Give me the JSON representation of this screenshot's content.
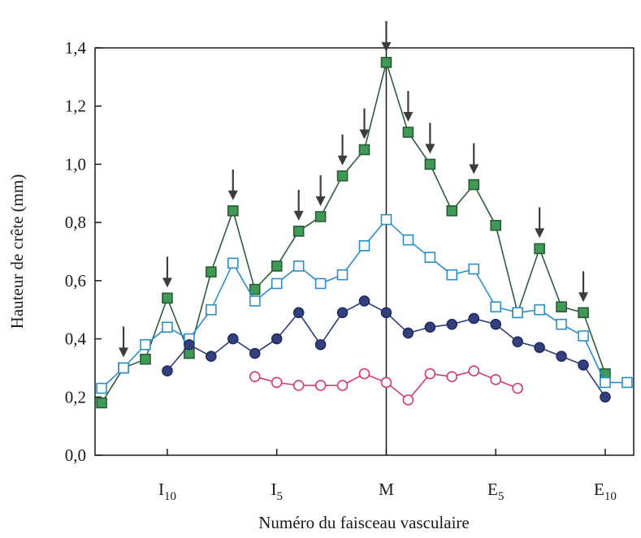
{
  "chart_data": {
    "type": "line",
    "xlabel": "Numéro du faisceau vasculaire",
    "ylabel": "Hauteur de crête (mm)",
    "ylim": [
      0,
      1.4
    ],
    "yticks": [
      {
        "value": 0.0,
        "label": "0,0"
      },
      {
        "value": 0.2,
        "label": "0,2"
      },
      {
        "value": 0.4,
        "label": "0,4"
      },
      {
        "value": 0.6,
        "label": "0,6"
      },
      {
        "value": 0.8,
        "label": "0,8"
      },
      {
        "value": 1.0,
        "label": "1,0"
      },
      {
        "value": 1.2,
        "label": "1,2"
      },
      {
        "value": 1.4,
        "label": "1,4"
      }
    ],
    "xlim": [
      -13.3,
      11.3
    ],
    "xticks": [
      {
        "value": -10,
        "main": "I",
        "sub": "10"
      },
      {
        "value": -5,
        "main": "I",
        "sub": "5"
      },
      {
        "value": 0,
        "main": "M",
        "sub": ""
      },
      {
        "value": 5,
        "main": "E",
        "sub": "5"
      },
      {
        "value": 10,
        "main": "E",
        "sub": "10"
      }
    ],
    "midline_x": 0,
    "series": [
      {
        "marker": "square-filled",
        "line_color": "#2f5a3c",
        "marker_fill": "#3f9a56",
        "marker_stroke": "#2a5a36",
        "points": [
          [
            -13,
            0.18
          ],
          [
            -12,
            0.3
          ],
          [
            -11,
            0.33
          ],
          [
            -10,
            0.54
          ],
          [
            -9,
            0.35
          ],
          [
            -8,
            0.63
          ],
          [
            -7,
            0.84
          ],
          [
            -6,
            0.57
          ],
          [
            -5,
            0.65
          ],
          [
            -4,
            0.77
          ],
          [
            -3,
            0.82
          ],
          [
            -2,
            0.96
          ],
          [
            -1,
            1.05
          ],
          [
            0,
            1.35
          ],
          [
            1,
            1.11
          ],
          [
            2,
            1.0
          ],
          [
            3,
            0.84
          ],
          [
            4,
            0.93
          ],
          [
            5,
            0.79
          ],
          [
            6,
            0.49
          ],
          [
            7,
            0.71
          ],
          [
            8,
            0.51
          ],
          [
            9,
            0.49
          ],
          [
            10,
            0.28
          ]
        ]
      },
      {
        "marker": "square-open",
        "line_color": "#2a8fc8",
        "marker_fill": "#ffffff",
        "marker_stroke": "#2a8fc8",
        "points": [
          [
            -13,
            0.23
          ],
          [
            -12,
            0.3
          ],
          [
            -11,
            0.38
          ],
          [
            -10,
            0.44
          ],
          [
            -9,
            0.4
          ],
          [
            -8,
            0.5
          ],
          [
            -7,
            0.66
          ],
          [
            -6,
            0.53
          ],
          [
            -5,
            0.59
          ],
          [
            -4,
            0.65
          ],
          [
            -3,
            0.59
          ],
          [
            -2,
            0.62
          ],
          [
            -1,
            0.72
          ],
          [
            0,
            0.81
          ],
          [
            1,
            0.74
          ],
          [
            2,
            0.68
          ],
          [
            3,
            0.62
          ],
          [
            4,
            0.64
          ],
          [
            5,
            0.51
          ],
          [
            6,
            0.49
          ],
          [
            7,
            0.5
          ],
          [
            8,
            0.45
          ],
          [
            9,
            0.41
          ],
          [
            10,
            0.25
          ],
          [
            11,
            0.25
          ]
        ]
      },
      {
        "marker": "circle-filled",
        "line_color": "#2c3a78",
        "marker_fill": "#34407e",
        "marker_stroke": "#222c60",
        "points": [
          [
            -10,
            0.29
          ],
          [
            -9,
            0.38
          ],
          [
            -8,
            0.34
          ],
          [
            -7,
            0.4
          ],
          [
            -6,
            0.35
          ],
          [
            -5,
            0.4
          ],
          [
            -4,
            0.49
          ],
          [
            -3,
            0.38
          ],
          [
            -2,
            0.49
          ],
          [
            -1,
            0.53
          ],
          [
            0,
            0.49
          ],
          [
            1,
            0.42
          ],
          [
            2,
            0.44
          ],
          [
            3,
            0.45
          ],
          [
            4,
            0.47
          ],
          [
            5,
            0.45
          ],
          [
            6,
            0.39
          ],
          [
            7,
            0.37
          ],
          [
            8,
            0.34
          ],
          [
            9,
            0.31
          ],
          [
            10,
            0.2
          ]
        ]
      },
      {
        "marker": "circle-open",
        "line_color": "#d23a6e",
        "marker_fill": "#ffffff",
        "marker_stroke": "#d23a6e",
        "points": [
          [
            -6,
            0.27
          ],
          [
            -5,
            0.25
          ],
          [
            -4,
            0.24
          ],
          [
            -3,
            0.24
          ],
          [
            -2,
            0.24
          ],
          [
            -1,
            0.28
          ],
          [
            0,
            0.25
          ],
          [
            1,
            0.19
          ],
          [
            2,
            0.28
          ],
          [
            3,
            0.27
          ],
          [
            4,
            0.29
          ],
          [
            5,
            0.26
          ],
          [
            6,
            0.23
          ]
        ]
      }
    ],
    "arrow_color": "#3c3c3c",
    "arrows": [
      {
        "x": -12,
        "value": 0.3
      },
      {
        "x": -10,
        "value": 0.54
      },
      {
        "x": -7,
        "value": 0.84
      },
      {
        "x": -4,
        "value": 0.77
      },
      {
        "x": -3,
        "value": 0.82
      },
      {
        "x": -2,
        "value": 0.96
      },
      {
        "x": -1,
        "value": 1.05
      },
      {
        "x": 0,
        "value": 1.35
      },
      {
        "x": 1,
        "value": 1.11
      },
      {
        "x": 2,
        "value": 1.0
      },
      {
        "x": 4,
        "value": 0.93
      },
      {
        "x": 7,
        "value": 0.71
      },
      {
        "x": 9,
        "value": 0.49
      }
    ]
  }
}
